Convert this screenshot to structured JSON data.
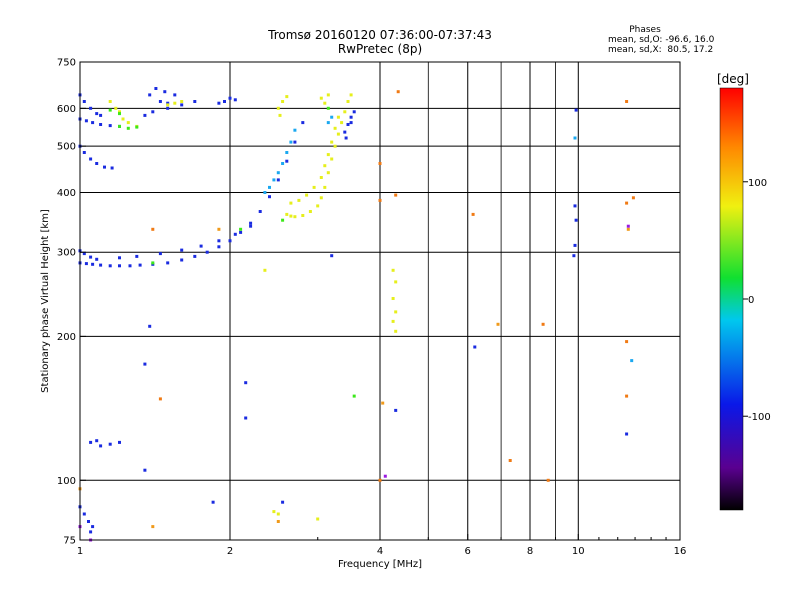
{
  "chart_data": {
    "type": "scatter",
    "title": "Tromsø 20160120 07:36:00-07:37:43",
    "subtitle": "RwPretec (8p)",
    "xlabel": "Frequency [MHz]",
    "ylabel": "Stationary phase Virtual Height [km]",
    "x_scale": "log",
    "y_scale": "log",
    "xlim": [
      1,
      16
    ],
    "ylim": [
      75,
      750
    ],
    "x_ticks": [
      1,
      2,
      4,
      6,
      8,
      10,
      16
    ],
    "x_tick_labels": [
      "1",
      "2",
      "4",
      "6",
      "8",
      "10",
      "16"
    ],
    "y_ticks": [
      75,
      100,
      200,
      300,
      400,
      500,
      600,
      750
    ],
    "y_tick_labels": [
      "75",
      "100",
      "200",
      "300",
      "400",
      "500",
      "600",
      "750"
    ],
    "grid": true,
    "phase_info": {
      "title": "Phases",
      "line_o": "mean, sd,O: -96.6, 16.0",
      "line_x": "mean, sd,X:  80.5, 17.2"
    },
    "colorbar": {
      "unit": "[deg]",
      "range": [
        -180,
        180
      ],
      "ticks": [
        100,
        0,
        -100
      ],
      "tick_labels": [
        "100",
        "0",
        "-100"
      ]
    },
    "trace_colors": {
      "o_mode": "#1a2be0",
      "x_mode": "#e6ef1c"
    },
    "series": [
      {
        "points": [
          [
            1.0,
            285
          ],
          [
            1.03,
            284
          ],
          [
            1.06,
            283
          ],
          [
            1.1,
            282
          ],
          [
            1.15,
            281
          ],
          [
            1.2,
            281
          ],
          [
            1.26,
            281
          ],
          [
            1.32,
            282
          ],
          [
            1.4,
            283
          ],
          [
            1.5,
            285
          ],
          [
            1.6,
            289
          ],
          [
            1.7,
            294
          ],
          [
            1.8,
            300
          ],
          [
            1.9,
            308
          ],
          [
            2.0,
            317
          ],
          [
            2.1,
            330
          ],
          [
            2.2,
            345
          ],
          [
            2.3,
            365
          ],
          [
            2.4,
            392
          ],
          [
            2.5,
            425
          ],
          [
            2.6,
            465
          ],
          [
            2.7,
            510
          ],
          [
            2.8,
            560
          ],
          [
            1.0,
            302
          ],
          [
            1.02,
            298
          ],
          [
            1.05,
            293
          ],
          [
            1.08,
            290
          ],
          [
            1.2,
            292
          ],
          [
            1.3,
            294
          ],
          [
            1.45,
            298
          ],
          [
            1.6,
            303
          ],
          [
            1.75,
            309
          ],
          [
            1.9,
            317
          ],
          [
            2.05,
            327
          ],
          [
            2.2,
            340
          ],
          [
            1.0,
            640
          ],
          [
            1.02,
            620
          ],
          [
            1.05,
            600
          ],
          [
            1.08,
            585
          ],
          [
            1.1,
            580
          ],
          [
            1.0,
            570
          ],
          [
            1.03,
            565
          ],
          [
            1.06,
            560
          ],
          [
            1.1,
            555
          ],
          [
            1.15,
            552
          ],
          [
            1.2,
            550
          ],
          [
            1.0,
            500
          ],
          [
            1.02,
            485
          ],
          [
            1.05,
            470
          ],
          [
            1.08,
            460
          ],
          [
            1.12,
            452
          ],
          [
            1.16,
            450
          ],
          [
            1.35,
            580
          ],
          [
            1.4,
            590
          ],
          [
            1.5,
            600
          ],
          [
            1.6,
            610
          ],
          [
            1.7,
            620
          ],
          [
            1.38,
            640
          ],
          [
            1.45,
            620
          ],
          [
            1.5,
            615
          ],
          [
            1.42,
            660
          ],
          [
            1.48,
            650
          ],
          [
            1.55,
            640
          ],
          [
            1.9,
            615
          ],
          [
            1.95,
            620
          ],
          [
            2.0,
            630
          ],
          [
            2.05,
            625
          ],
          [
            3.4,
            535
          ],
          [
            3.45,
            555
          ],
          [
            3.5,
            575
          ],
          [
            3.55,
            590
          ],
          [
            3.5,
            560
          ],
          [
            3.42,
            520
          ],
          [
            1.05,
            120
          ],
          [
            1.1,
            118
          ],
          [
            1.15,
            119
          ],
          [
            1.2,
            120
          ],
          [
            1.08,
            121
          ],
          [
            1.0,
            88
          ],
          [
            1.02,
            85
          ],
          [
            1.04,
            82
          ],
          [
            1.06,
            80
          ],
          [
            1.05,
            78
          ],
          [
            1.35,
            105
          ],
          [
            2.15,
            160
          ],
          [
            2.15,
            135
          ],
          [
            1.85,
            90
          ],
          [
            2.55,
            90
          ],
          [
            3.2,
            295
          ],
          [
            4.3,
            140
          ],
          [
            9.8,
            295
          ],
          [
            9.85,
            310
          ],
          [
            9.9,
            350
          ],
          [
            9.85,
            375
          ],
          [
            9.9,
            595
          ],
          [
            6.2,
            190
          ],
          [
            12.5,
            125
          ],
          [
            1.35,
            175
          ],
          [
            1.38,
            210
          ]
        ],
        "color": "#1a2be0"
      },
      {
        "points": [
          [
            2.6,
            360
          ],
          [
            2.65,
            357
          ],
          [
            2.7,
            356
          ],
          [
            2.8,
            358
          ],
          [
            2.9,
            365
          ],
          [
            3.0,
            375
          ],
          [
            3.05,
            390
          ],
          [
            3.1,
            410
          ],
          [
            3.15,
            440
          ],
          [
            3.2,
            470
          ],
          [
            3.25,
            500
          ],
          [
            3.3,
            530
          ],
          [
            3.35,
            560
          ],
          [
            3.4,
            590
          ],
          [
            3.45,
            620
          ],
          [
            3.5,
            640
          ],
          [
            2.65,
            380
          ],
          [
            2.75,
            385
          ],
          [
            2.85,
            395
          ],
          [
            2.95,
            410
          ],
          [
            3.05,
            430
          ],
          [
            3.1,
            455
          ],
          [
            3.15,
            480
          ],
          [
            3.2,
            510
          ],
          [
            3.25,
            545
          ],
          [
            3.3,
            575
          ],
          [
            2.5,
            600
          ],
          [
            2.55,
            620
          ],
          [
            2.6,
            635
          ],
          [
            2.52,
            580
          ],
          [
            3.05,
            630
          ],
          [
            3.1,
            615
          ],
          [
            3.15,
            640
          ],
          [
            1.15,
            620
          ],
          [
            1.18,
            600
          ],
          [
            1.2,
            590
          ],
          [
            1.22,
            570
          ],
          [
            1.25,
            560
          ],
          [
            1.5,
            610
          ],
          [
            1.55,
            615
          ],
          [
            1.6,
            620
          ],
          [
            1.3,
            550
          ],
          [
            4.25,
            215
          ],
          [
            4.3,
            225
          ],
          [
            4.25,
            240
          ],
          [
            4.3,
            260
          ],
          [
            4.25,
            275
          ],
          [
            4.3,
            205
          ],
          [
            2.35,
            275
          ],
          [
            2.5,
            85
          ],
          [
            2.45,
            86
          ],
          [
            3.0,
            83
          ]
        ],
        "color": "#e6ef1c"
      },
      {
        "points": [
          [
            2.35,
            400
          ],
          [
            2.4,
            410
          ],
          [
            2.45,
            425
          ],
          [
            2.5,
            440
          ],
          [
            2.55,
            460
          ],
          [
            2.6,
            485
          ],
          [
            2.65,
            510
          ],
          [
            2.7,
            540
          ],
          [
            3.15,
            560
          ],
          [
            3.2,
            575
          ],
          [
            9.85,
            520
          ],
          [
            12.8,
            178
          ]
        ],
        "color": "#1aa8f0"
      },
      {
        "points": [
          [
            1.15,
            595
          ],
          [
            1.2,
            585
          ],
          [
            1.2,
            550
          ],
          [
            1.25,
            545
          ],
          [
            1.3,
            548
          ],
          [
            3.15,
            600
          ],
          [
            1.4,
            285
          ],
          [
            2.55,
            350
          ],
          [
            3.55,
            150
          ],
          [
            2.1,
            335
          ]
        ],
        "color": "#3ce81a"
      },
      {
        "points": [
          [
            4.0,
            100
          ],
          [
            4.35,
            650
          ],
          [
            4.3,
            395
          ],
          [
            4.0,
            385
          ],
          [
            6.15,
            360
          ],
          [
            7.3,
            110
          ],
          [
            8.5,
            212
          ],
          [
            8.7,
            100
          ],
          [
            12.5,
            620
          ],
          [
            12.5,
            380
          ],
          [
            12.5,
            195
          ],
          [
            12.5,
            150
          ],
          [
            12.9,
            390
          ],
          [
            4.0,
            460
          ],
          [
            1.4,
            335
          ],
          [
            1.45,
            148
          ]
        ],
        "color": "#f07a14"
      },
      {
        "points": [
          [
            1.4,
            80
          ],
          [
            2.5,
            82
          ],
          [
            6.9,
            212
          ],
          [
            1.0,
            96
          ],
          [
            12.6,
            335
          ],
          [
            4.05,
            145
          ],
          [
            1.9,
            335
          ]
        ],
        "color": "#f09a1a"
      },
      {
        "points": [
          [
            1.0,
            80
          ],
          [
            1.05,
            75
          ],
          [
            12.6,
            340
          ],
          [
            4.1,
            102
          ]
        ],
        "color": "#9a1ae0"
      }
    ]
  }
}
